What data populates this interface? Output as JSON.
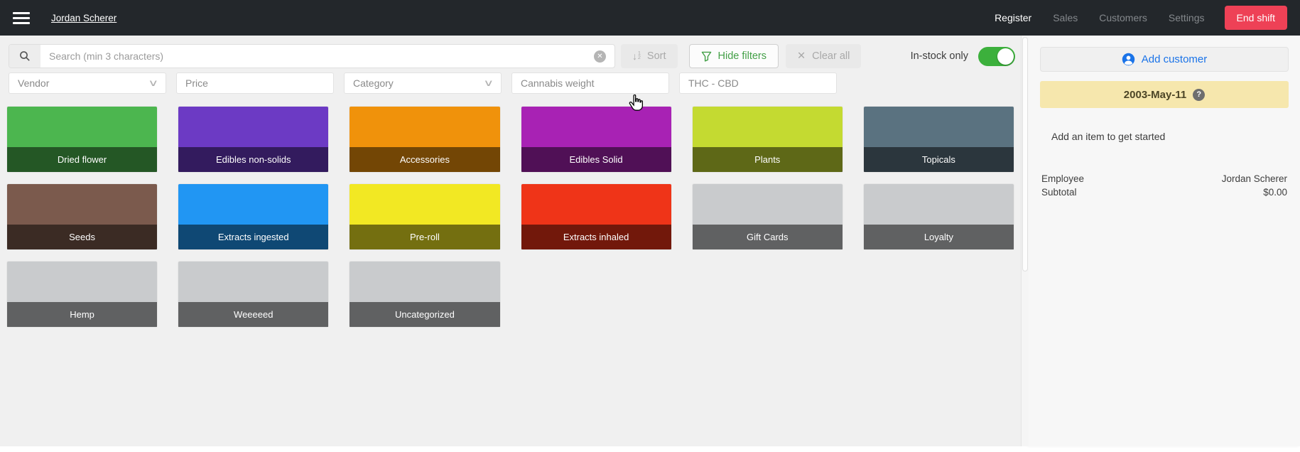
{
  "topbar": {
    "user_name": "Jordan Scherer",
    "nav": [
      {
        "label": "Register",
        "active": true
      },
      {
        "label": "Sales",
        "active": false
      },
      {
        "label": "Customers",
        "active": false
      },
      {
        "label": "Settings",
        "active": false
      }
    ],
    "end_shift_label": "End shift"
  },
  "filters": {
    "search_placeholder": "Search (min 3 characters)",
    "search_value": "",
    "sort_label": "Sort",
    "hide_filters_label": "Hide filters",
    "clear_all_label": "Clear all",
    "in_stock_label": "In-stock only",
    "in_stock_on": true,
    "dropdowns": [
      {
        "label": "Vendor",
        "chevron": true
      },
      {
        "label": "Price",
        "chevron": false
      },
      {
        "label": "Category",
        "chevron": true
      },
      {
        "label": "Cannabis weight",
        "chevron": false
      },
      {
        "label": "THC - CBD",
        "chevron": false
      }
    ]
  },
  "categories": [
    {
      "label": "Dried flower",
      "color": "#4cb64f"
    },
    {
      "label": "Edibles non-solids",
      "color": "#6c3ac4"
    },
    {
      "label": "Accessories",
      "color": "#f0920b"
    },
    {
      "label": "Edibles Solid",
      "color": "#a822b4"
    },
    {
      "label": "Plants",
      "color": "#c4da31"
    },
    {
      "label": "Topicals",
      "color": "#5a7280"
    },
    {
      "label": "Seeds",
      "color": "#7b5a4d"
    },
    {
      "label": "Extracts ingested",
      "color": "#2196f3"
    },
    {
      "label": "Pre-roll",
      "color": "#f2e823"
    },
    {
      "label": "Extracts inhaled",
      "color": "#ef3418"
    },
    {
      "label": "Gift Cards",
      "color": "#c9cbcd"
    },
    {
      "label": "Loyalty",
      "color": "#c9cbcd"
    },
    {
      "label": "Hemp",
      "color": "#c9cbcd"
    },
    {
      "label": "Weeeeed",
      "color": "#c9cbcd"
    },
    {
      "label": "Uncategorized",
      "color": "#c9cbcd"
    }
  ],
  "cart": {
    "add_customer_label": "Add customer",
    "date_banner": "2003-May-11",
    "empty_message": "Add an item to get started",
    "rows": [
      {
        "label": "Employee",
        "value": "Jordan Scherer"
      },
      {
        "label": "Subtotal",
        "value": "$0.00"
      }
    ]
  },
  "colors": {
    "end-shift": "#ee4156",
    "toggle": "#3cb03c",
    "hide-filters": "#43a047",
    "add-customer": "#1a73e8",
    "banner": "#f6e7ad",
    "topbar-bg": "#23272b"
  }
}
